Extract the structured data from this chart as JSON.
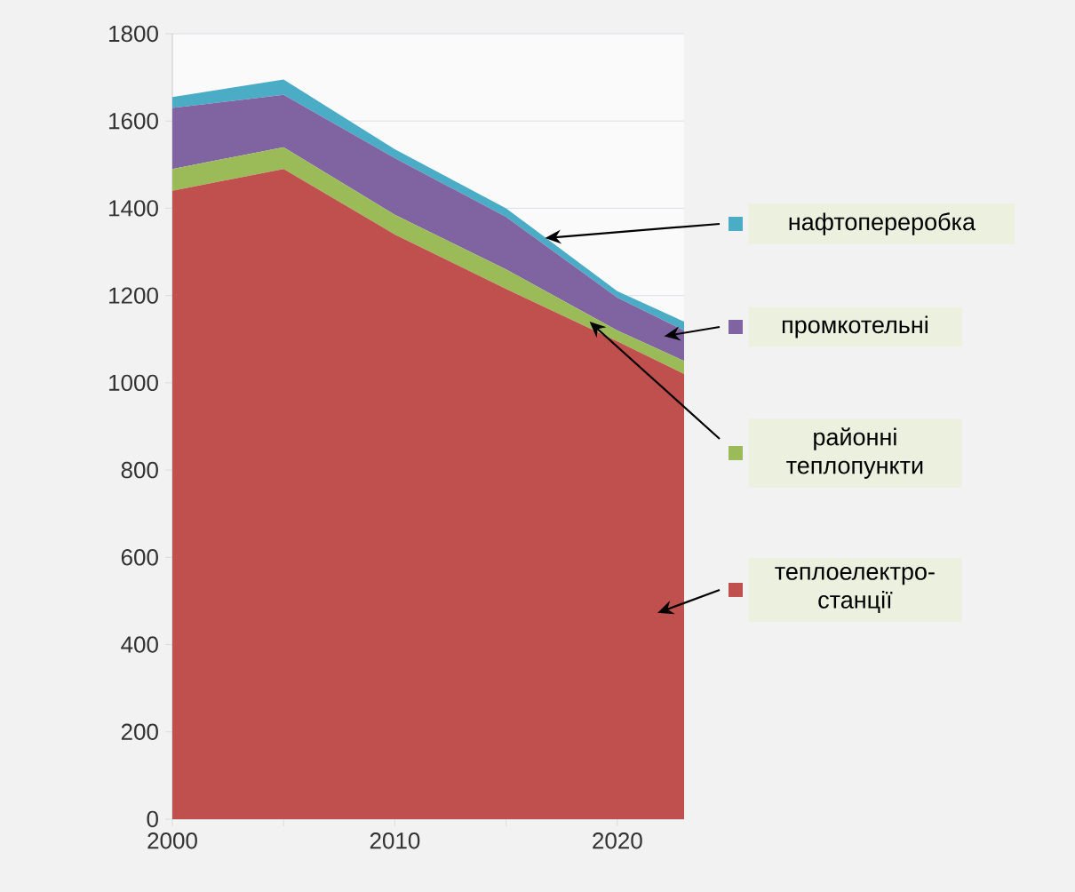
{
  "chart_data": {
    "type": "area",
    "stacked": true,
    "x": [
      2000,
      2005,
      2010,
      2015,
      2020,
      2023
    ],
    "series": [
      {
        "name": "теплоелектро-станції",
        "color": "#c0504d",
        "values": [
          1440,
          1490,
          1340,
          1215,
          1095,
          1020
        ]
      },
      {
        "name": "районні теплопункти",
        "color": "#9bbb59",
        "values": [
          50,
          50,
          45,
          45,
          25,
          30
        ]
      },
      {
        "name": "промкотельні",
        "color": "#8064a2",
        "values": [
          140,
          120,
          130,
          120,
          75,
          70
        ]
      },
      {
        "name": "нафтопереробка",
        "color": "#4bacc6",
        "values": [
          25,
          35,
          20,
          20,
          15,
          20
        ]
      }
    ],
    "xlim": [
      2000,
      2023
    ],
    "xticks": [
      2000,
      {
        "value": 2005,
        "label": null
      },
      2010,
      {
        "value": 2015,
        "label": null
      },
      2020
    ],
    "ylim": [
      0,
      1800
    ],
    "yticks": [
      0,
      200,
      400,
      600,
      800,
      1000,
      1200,
      1400,
      1600,
      1800
    ],
    "grid": "y",
    "legend": "right"
  }
}
